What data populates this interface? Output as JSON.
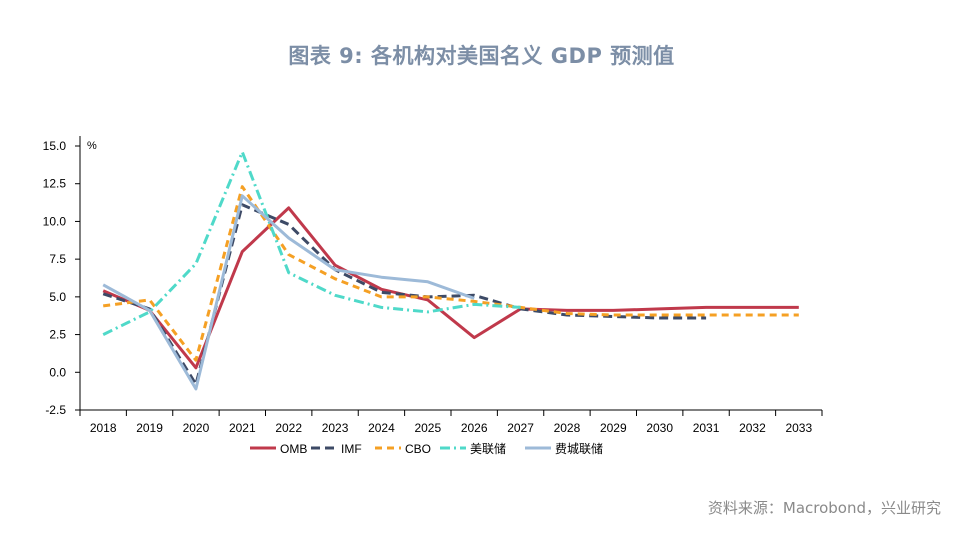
{
  "title": "图表 9:     各机构对美国名义 GDP 预测值",
  "source": "资料来源：Macrobond，兴业研究",
  "chart_data": {
    "type": "line",
    "unit_label": "%",
    "x": [
      "2018",
      "2019",
      "2020",
      "2021",
      "2022",
      "2023",
      "2024",
      "2025",
      "2026",
      "2027",
      "2028",
      "2029",
      "2030",
      "2031",
      "2032",
      "2033"
    ],
    "ylim": [
      -2.5,
      15.0
    ],
    "yticks": [
      "15.0",
      "12.5",
      "10.0",
      "7.5",
      "5.0",
      "2.5",
      "0.0",
      "-2.5"
    ],
    "ytick_values": [
      15.0,
      12.5,
      10.0,
      7.5,
      5.0,
      2.5,
      0.0,
      -2.5
    ],
    "legend_position": "bottom",
    "series": [
      {
        "name": "OMB",
        "color": "#c0394b",
        "dash": "solid",
        "values": [
          5.4,
          4.1,
          0.3,
          8.0,
          10.9,
          7.1,
          5.5,
          4.8,
          2.3,
          4.2,
          4.1,
          4.1,
          4.2,
          4.3,
          4.3,
          4.3
        ]
      },
      {
        "name": "IMF",
        "color": "#3d4a66",
        "dash": "longdash",
        "values": [
          5.2,
          4.2,
          -0.8,
          11.1,
          9.8,
          6.8,
          5.3,
          5.0,
          5.1,
          4.2,
          3.8,
          3.7,
          3.6,
          3.6,
          null,
          null
        ]
      },
      {
        "name": "CBO",
        "color": "#f5a024",
        "dash": "dash",
        "values": [
          4.4,
          4.8,
          0.8,
          12.3,
          7.8,
          6.2,
          5.0,
          5.0,
          4.7,
          4.3,
          3.9,
          3.8,
          3.8,
          3.8,
          3.8,
          3.8
        ]
      },
      {
        "name": "美联储",
        "color": "#4fd9c9",
        "dash": "dashdot",
        "values": [
          2.5,
          4.0,
          7.2,
          14.6,
          6.6,
          5.1,
          4.3,
          4.0,
          4.5,
          4.3,
          null,
          null,
          null,
          null,
          null,
          null
        ]
      },
      {
        "name": "费城联储",
        "color": "#9dbad8",
        "dash": "solid",
        "values": [
          5.8,
          4.1,
          -1.1,
          11.7,
          8.9,
          6.8,
          6.3,
          6.0,
          4.9,
          null,
          null,
          null,
          null,
          null,
          null,
          null
        ]
      }
    ]
  }
}
